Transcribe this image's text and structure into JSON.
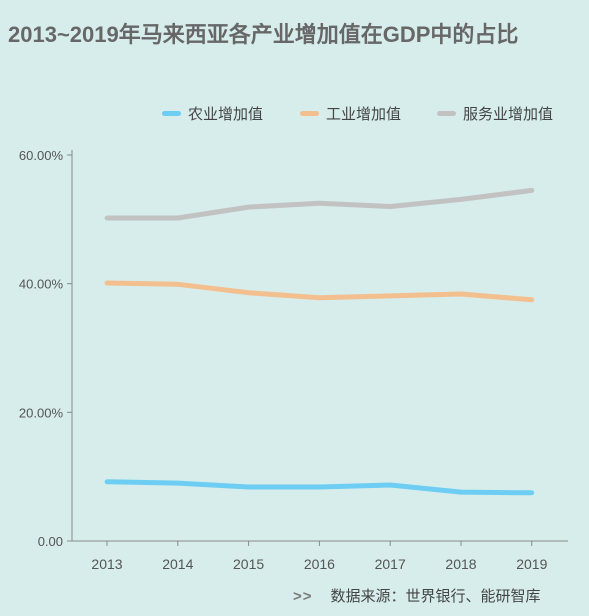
{
  "chart_data": {
    "type": "line",
    "title": "2013~2019年马来西亚各产业增加值在GDP中的占比",
    "xlabel": "",
    "ylabel": "",
    "x": [
      "2013",
      "2014",
      "2015",
      "2016",
      "2017",
      "2018",
      "2019"
    ],
    "ylim": [
      0,
      60
    ],
    "yticks": [
      {
        "value": 0,
        "label": "0.00"
      },
      {
        "value": 20,
        "label": "20.00%"
      },
      {
        "value": 40,
        "label": "40.00%"
      },
      {
        "value": 60,
        "label": "60.00%"
      }
    ],
    "grid": false,
    "legend": "top",
    "series": [
      {
        "name": "农业增加值",
        "color": "#6ecdf3",
        "values": [
          9.2,
          9.0,
          8.4,
          8.4,
          8.7,
          7.6,
          7.5
        ]
      },
      {
        "name": "工业增加值",
        "color": "#f3bf8e",
        "values": [
          40.1,
          39.9,
          38.6,
          37.8,
          38.1,
          38.4,
          37.5
        ]
      },
      {
        "name": "服务业增加值",
        "color": "#c2c2c2",
        "values": [
          50.2,
          50.2,
          51.9,
          52.5,
          52.0,
          53.1,
          54.5
        ]
      }
    ]
  },
  "source": {
    "prefix": ">>",
    "text": "数据来源：世界银行、能研智库"
  },
  "colors": {
    "background": "#d6edeb",
    "title": "#676767",
    "axis": "#8a8a8a"
  }
}
